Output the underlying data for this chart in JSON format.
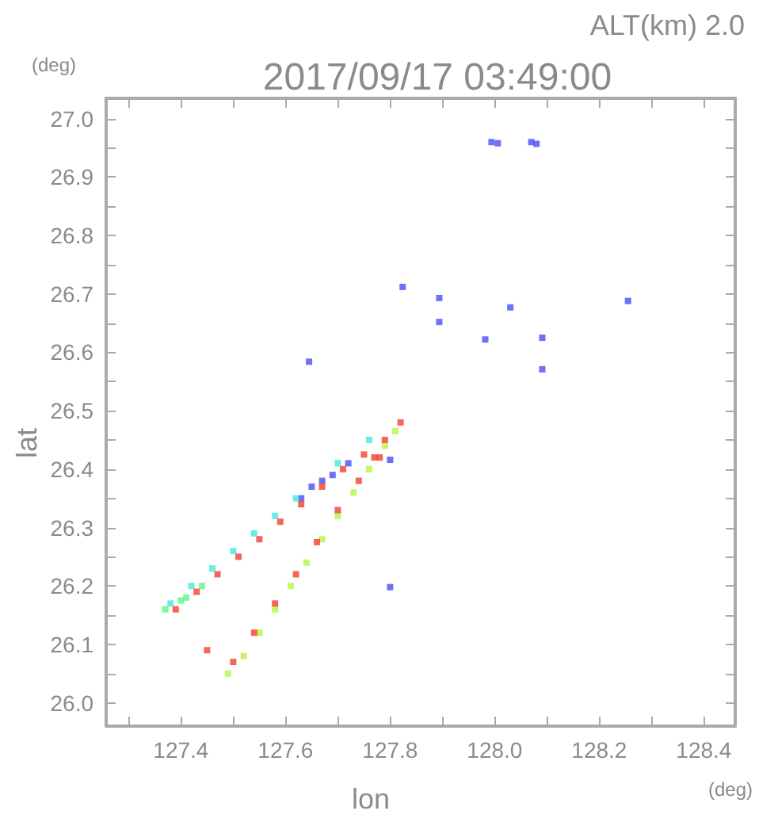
{
  "chart_data": {
    "type": "scatter",
    "title": "2017/09/17 03:49:00",
    "subtitle": "ALT(km) 2.0",
    "xlabel": "lon",
    "ylabel": "lat",
    "annotations": [
      "(deg)",
      "(deg)"
    ],
    "xlim": [
      127.257,
      128.46
    ],
    "ylim": [
      25.96,
      27.035
    ],
    "xticks": [
      {
        "value": 127.3,
        "label": null
      },
      127.4,
      {
        "value": 127.5,
        "label": null
      },
      127.6,
      {
        "value": 127.7,
        "label": null
      },
      127.8,
      {
        "value": 127.9,
        "label": null
      },
      {
        "value": 128.0,
        "label": "128.0"
      },
      {
        "value": 128.1,
        "label": null
      },
      128.2,
      {
        "value": 128.3,
        "label": null
      },
      128.4
    ],
    "yticks": [
      {
        "value": 26.0,
        "label": "26.0"
      },
      {
        "value": 26.05,
        "label": null
      },
      26.1,
      {
        "value": 26.15,
        "label": null
      },
      26.2,
      {
        "value": 26.25,
        "label": null
      },
      26.3,
      {
        "value": 26.35,
        "label": null
      },
      26.4,
      {
        "value": 26.45,
        "label": null
      },
      26.5,
      {
        "value": 26.55,
        "label": null
      },
      26.6,
      {
        "value": 26.65,
        "label": null
      },
      26.7,
      {
        "value": 26.75,
        "label": null
      },
      26.8,
      {
        "value": 26.85,
        "label": null
      },
      26.9,
      {
        "value": 26.95,
        "label": null
      },
      {
        "value": 27.0,
        "label": "27.0"
      }
    ],
    "grid": false,
    "marker": "square",
    "series": [
      {
        "color": "#4a4cf5",
        "x": [
          127.994,
          128.006,
          128.07,
          128.08,
          127.824,
          127.894,
          127.894,
          128.03,
          127.982,
          128.091,
          128.091,
          127.645,
          128.255,
          127.8,
          127.8,
          127.63,
          127.65,
          127.67,
          127.69,
          127.72
        ],
        "values": [
          26.96,
          26.958,
          26.96,
          26.957,
          26.712,
          26.693,
          26.652,
          26.677,
          26.622,
          26.625,
          26.571,
          26.584,
          26.688,
          26.416,
          26.198,
          26.35,
          26.37,
          26.38,
          26.39,
          26.41
        ]
      },
      {
        "color": "#44e8e0",
        "x": [
          127.38,
          127.42,
          127.46,
          127.5,
          127.54,
          127.58,
          127.62,
          127.7,
          127.76
        ],
        "values": [
          26.17,
          26.2,
          26.23,
          26.26,
          26.29,
          26.32,
          26.35,
          26.41,
          26.45
        ]
      },
      {
        "color": "#5cf58a",
        "x": [
          127.37,
          127.4,
          127.41,
          127.44
        ],
        "values": [
          26.16,
          26.175,
          26.18,
          26.2
        ]
      },
      {
        "color": "#b8f542",
        "x": [
          127.49,
          127.52,
          127.55,
          127.58,
          127.61,
          127.64,
          127.67,
          127.7,
          127.73,
          127.76,
          127.79,
          127.81
        ],
        "values": [
          26.05,
          26.08,
          26.12,
          26.16,
          26.2,
          26.24,
          26.28,
          26.32,
          26.36,
          26.4,
          26.44,
          26.465
        ]
      },
      {
        "color": "#f04030",
        "x": [
          127.39,
          127.43,
          127.47,
          127.51,
          127.55,
          127.59,
          127.63,
          127.67,
          127.71,
          127.75,
          127.79,
          127.82,
          127.5,
          127.54,
          127.58,
          127.62,
          127.66,
          127.7,
          127.74,
          127.77,
          127.78,
          127.45
        ],
        "values": [
          26.16,
          26.19,
          26.22,
          26.25,
          26.28,
          26.31,
          26.34,
          26.37,
          26.4,
          26.425,
          26.45,
          26.48,
          26.07,
          26.12,
          26.17,
          26.22,
          26.275,
          26.33,
          26.38,
          26.42,
          26.42,
          26.09
        ]
      }
    ]
  }
}
